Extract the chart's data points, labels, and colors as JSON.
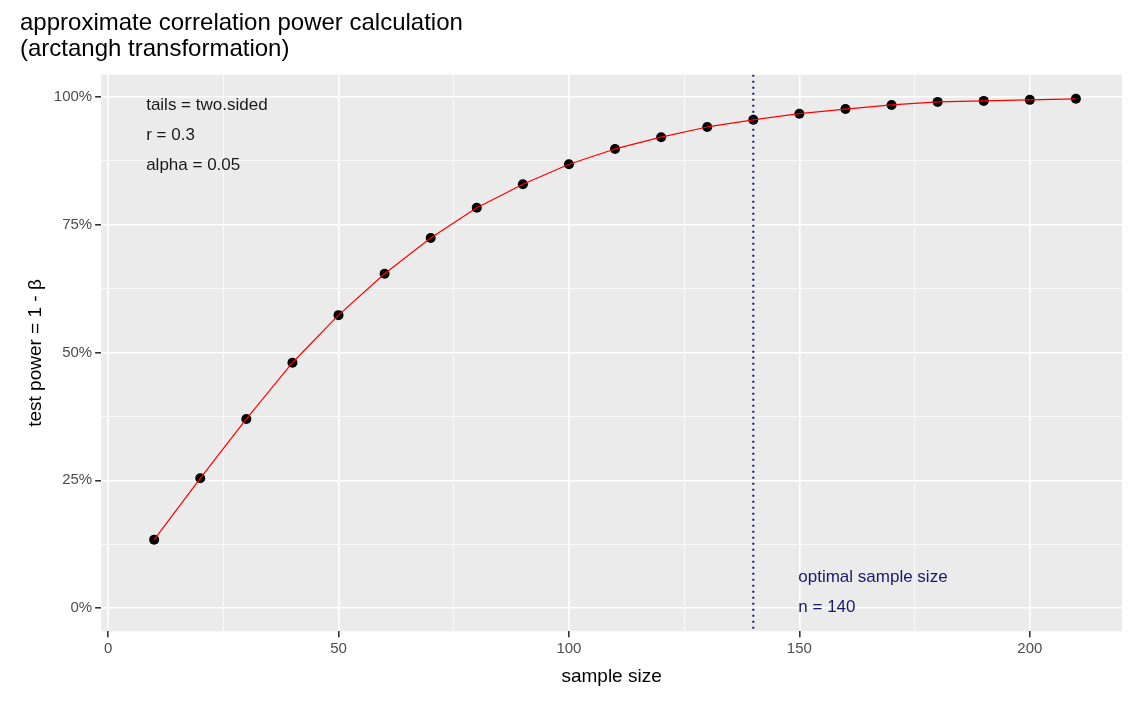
{
  "chart_data": {
    "type": "line",
    "title": "approximate correlation power calculation\n(arctangh transformation)",
    "xlabel": "sample size",
    "ylabel": "test power = 1 - β",
    "x": [
      10,
      20,
      30,
      40,
      50,
      60,
      70,
      80,
      90,
      100,
      110,
      120,
      130,
      140,
      150,
      160,
      170,
      180,
      190,
      200,
      210
    ],
    "series": [
      {
        "type": "line",
        "color": "#ff0000",
        "marker": "none",
        "values": [
          13.4,
          25.4,
          37.0,
          48.0,
          57.3,
          65.4,
          72.4,
          78.3,
          82.9,
          86.8,
          89.8,
          92.1,
          94.1,
          95.5,
          96.7,
          97.6,
          98.4,
          99.0,
          99.2,
          99.4,
          99.6
        ]
      },
      {
        "type": "scatter",
        "color": "#000000",
        "marker": "circle",
        "values": [
          13.4,
          25.4,
          37.0,
          48.0,
          57.3,
          65.4,
          72.4,
          78.3,
          82.9,
          86.8,
          89.8,
          92.1,
          94.1,
          95.5,
          96.7,
          97.6,
          98.4,
          99.0,
          99.2,
          99.4,
          99.6
        ]
      }
    ],
    "xlim": [
      -1.5,
      220
    ],
    "xticks": [
      0,
      {
        "value": 25,
        "label": null
      },
      50,
      {
        "value": 75,
        "label": null
      },
      100,
      {
        "value": 125,
        "label": null
      },
      150,
      {
        "value": 175,
        "label": null
      },
      200
    ],
    "ylim": [
      -4.5,
      104.3
    ],
    "yticks": [
      {
        "value": 0,
        "label": "0%"
      },
      {
        "value": 12.5,
        "label": null
      },
      {
        "value": 25,
        "label": "25%"
      },
      {
        "value": 37.5,
        "label": null
      },
      {
        "value": 50,
        "label": "50%"
      },
      {
        "value": 62.5,
        "label": null
      },
      {
        "value": 75,
        "label": "75%"
      },
      {
        "value": 87.5,
        "label": null
      },
      {
        "value": 100,
        "label": "100%"
      }
    ],
    "ref_lines": [
      {
        "axis": "x",
        "value": 140,
        "color": "#191970",
        "line_style": "dotted",
        "label": "optimal sample size\nn = 140"
      }
    ],
    "annotations": [
      "tails = two.sided",
      "r = 0.3",
      "alpha = 0.05"
    ],
    "grid": true,
    "legend": false
  }
}
